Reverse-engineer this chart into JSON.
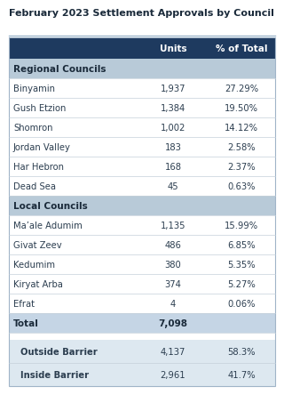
{
  "title": "February 2023 Settlement Approvals by Council",
  "header": [
    "",
    "Units",
    "% of Total"
  ],
  "header_bg": "#1e3a5f",
  "header_text_color": "#ffffff",
  "section_bg": "#b8cad8",
  "section_text_color": "#1a2a3a",
  "total_bg": "#c5d5e5",
  "barrier_bg": "#dde8f0",
  "row_bg": "#ffffff",
  "divider_color": "#c5d0da",
  "regional_section": "Regional Councils",
  "regional_rows": [
    [
      "Binyamin",
      "1,937",
      "27.29%"
    ],
    [
      "Gush Etzion",
      "1,384",
      "19.50%"
    ],
    [
      "Shomron",
      "1,002",
      "14.12%"
    ],
    [
      "Jordan Valley",
      "183",
      "2.58%"
    ],
    [
      "Har Hebron",
      "168",
      "2.37%"
    ],
    [
      "Dead Sea",
      "45",
      "0.63%"
    ]
  ],
  "local_section": "Local Councils",
  "local_rows": [
    [
      "Ma’ale Adumim",
      "1,135",
      "15.99%"
    ],
    [
      "Givat Zeev",
      "486",
      "6.85%"
    ],
    [
      "Kedumim",
      "380",
      "5.35%"
    ],
    [
      "Kiryat Arba",
      "374",
      "5.27%"
    ],
    [
      "Efrat",
      "4",
      "0.06%"
    ]
  ],
  "total_row": [
    "Total",
    "7,098",
    ""
  ],
  "barrier_rows": [
    [
      "Outside Barrier",
      "4,137",
      "58.3%"
    ],
    [
      "Inside Barrier",
      "2,961",
      "41.7%"
    ]
  ],
  "bg_color": "#ffffff",
  "title_color": "#1a2a3a",
  "body_text_color": "#2c3e50",
  "total_text_color": "#1a2a3a",
  "border_color": "#a0b4c8"
}
